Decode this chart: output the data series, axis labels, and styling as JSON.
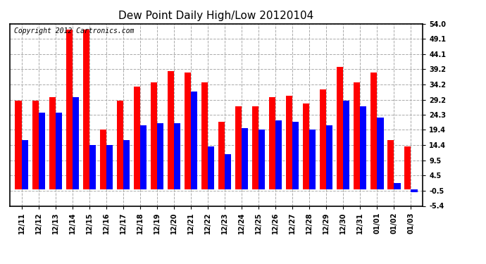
{
  "title": "Dew Point Daily High/Low 20120104",
  "copyright": "Copyright 2012 Cartronics.com",
  "dates": [
    "12/11",
    "12/12",
    "12/13",
    "12/14",
    "12/15",
    "12/16",
    "12/17",
    "12/18",
    "12/19",
    "12/20",
    "12/21",
    "12/22",
    "12/23",
    "12/24",
    "12/25",
    "12/26",
    "12/27",
    "12/28",
    "12/29",
    "12/30",
    "12/31",
    "01/01",
    "01/02",
    "01/03"
  ],
  "highs": [
    29.0,
    29.0,
    30.0,
    52.0,
    52.0,
    19.5,
    29.0,
    33.5,
    35.0,
    38.5,
    38.0,
    35.0,
    22.0,
    27.0,
    27.0,
    30.0,
    30.5,
    28.0,
    32.5,
    40.0,
    35.0,
    38.0,
    16.0,
    14.0
  ],
  "lows": [
    16.0,
    25.0,
    25.0,
    30.0,
    14.5,
    14.5,
    16.0,
    21.0,
    21.5,
    21.5,
    32.0,
    14.0,
    11.5,
    20.0,
    19.5,
    22.5,
    22.0,
    19.5,
    21.0,
    29.0,
    27.0,
    23.5,
    2.0,
    -1.0
  ],
  "high_color": "#ff0000",
  "low_color": "#0000ff",
  "bg_color": "#ffffff",
  "grid_color": "#aaaaaa",
  "yticks": [
    54.0,
    49.1,
    44.1,
    39.2,
    34.2,
    29.2,
    24.3,
    19.4,
    14.4,
    9.5,
    4.5,
    -0.5,
    -5.4
  ],
  "ymin": -5.4,
  "ymax": 54.0,
  "title_fontsize": 11,
  "copyright_fontsize": 7,
  "tick_fontsize": 7
}
